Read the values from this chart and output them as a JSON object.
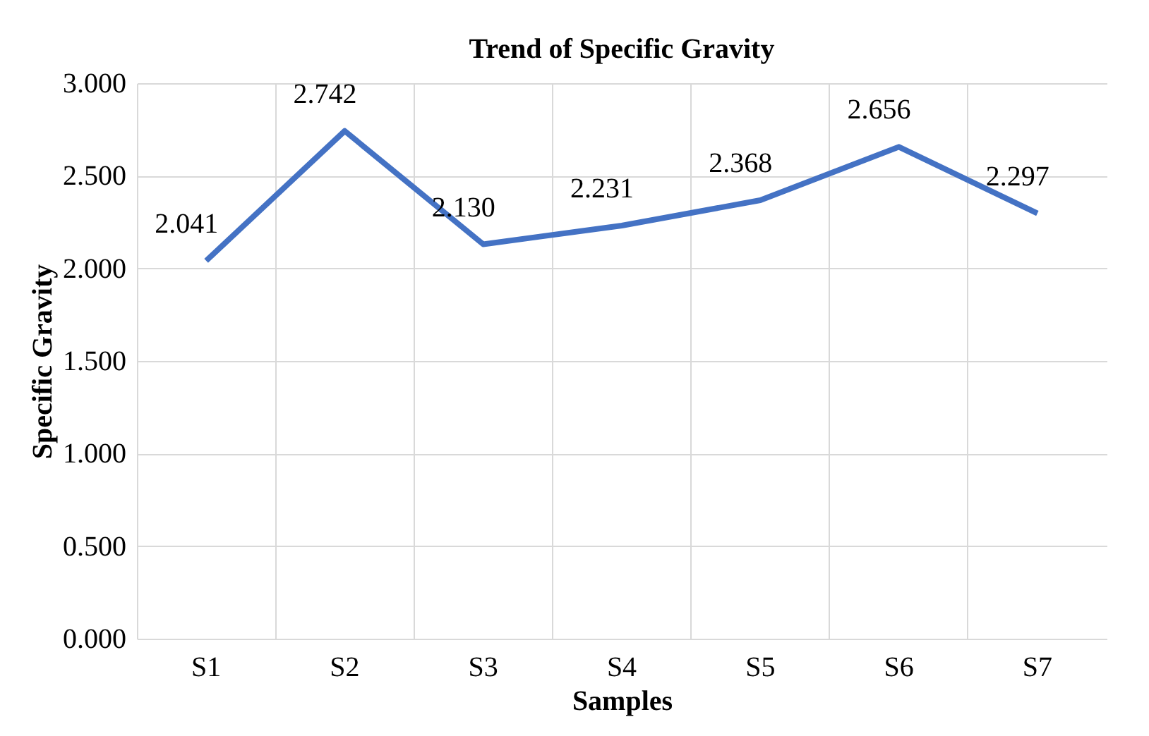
{
  "chart_data": {
    "type": "line",
    "title": "Trend of Specific Gravity",
    "xlabel": "Samples",
    "ylabel": "Specific Gravity",
    "categories": [
      "S1",
      "S2",
      "S3",
      "S4",
      "S5",
      "S6",
      "S7"
    ],
    "series": [
      {
        "color": "#4472c4",
        "values": [
          2.041,
          2.742,
          2.13,
          2.231,
          2.368,
          2.656,
          2.297
        ],
        "value_labels": [
          "2.041",
          "2.742",
          "2.130",
          "2.231",
          "2.368",
          "2.656",
          "2.297"
        ]
      }
    ],
    "ylim": [
      0,
      3
    ],
    "yticks": [
      {
        "value": 0,
        "label": "0.000"
      },
      {
        "value": 0.5,
        "label": "0.500"
      },
      {
        "value": 1,
        "label": "1.000"
      },
      {
        "value": 1.5,
        "label": "1.500"
      },
      {
        "value": 2,
        "label": "2.000"
      },
      {
        "value": 2.5,
        "label": "2.500"
      },
      {
        "value": 3,
        "label": "3.000"
      }
    ],
    "grid": true,
    "legend": false,
    "marker": "none",
    "line_style": "solid"
  }
}
